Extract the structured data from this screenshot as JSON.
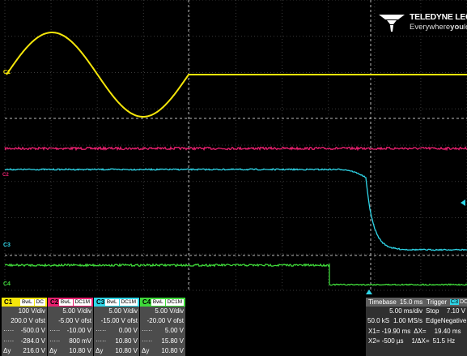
{
  "brand": {
    "name": "TELEDYNE LECROY",
    "tagline_pre": "Everywhere",
    "tagline_you": "you",
    "tagline_post": "look",
    "tm": "™"
  },
  "colors": {
    "c1": "#f5e60a",
    "c2": "#e8206f",
    "c3": "#2fd6e8",
    "c4": "#3fd93a",
    "grid": "#3a3a3a"
  },
  "markers": {
    "c1": "C1",
    "c2": "C2",
    "c3": "C3",
    "c4": "C4"
  },
  "channels": [
    {
      "name": "C1",
      "tag1": "BwL",
      "tag2": "DC",
      "scale": "100 V/div",
      "offset": "200.0 V ofst",
      "r3l": "·····",
      "r3": "-500.0 V",
      "r4l": "·····",
      "r4": "-284.0 V",
      "r5l": "Δy",
      "r5": "216.0 V"
    },
    {
      "name": "C2",
      "tag1": "BwL",
      "tag2": "DC1M",
      "scale": "5.00 V/div",
      "offset": "-5.00 V ofst",
      "r3l": "·····",
      "r3": "-10.00 V",
      "r4l": "·····",
      "r4": "800 mV",
      "r5l": "Δy",
      "r5": "10.80 V"
    },
    {
      "name": "C3",
      "tag1": "BwL",
      "tag2": "DC1M",
      "scale": "5.00 V/div",
      "offset": "-15.00 V ofst",
      "r3l": "·····",
      "r3": "0.00 V",
      "r4l": "·····",
      "r4": "10.80 V",
      "r5l": "Δy",
      "r5": "10.80 V"
    },
    {
      "name": "C4",
      "tag1": "BwL",
      "tag2": "DC1M",
      "scale": "5.00 V/div",
      "offset": "-20.00 V ofst",
      "r3l": "·····",
      "r3": "5.00 V",
      "r4l": "·····",
      "r4": "15.80 V",
      "r5l": "Δy",
      "r5": "10.80 V"
    }
  ],
  "timebase": {
    "label": "Timebase",
    "value": "15.0 ms",
    "per_div": "5.00 ms/div",
    "sample_kS": "50.0 kS",
    "sample_rate": "1.00 MS/s"
  },
  "trigger": {
    "label": "Trigger",
    "channel": "C3",
    "coupling": "DC",
    "mode": "Stop",
    "level": "7.10 V",
    "type": "Edge",
    "slope": "Negative"
  },
  "measure": {
    "x1": "X1= -19.90 ms",
    "dx": "ΔX=",
    "dx_val": "19.40 ms",
    "x2": "X2= -500 µs",
    "inv": "1/ΔX=",
    "inv_val": "51.5 Hz"
  }
}
